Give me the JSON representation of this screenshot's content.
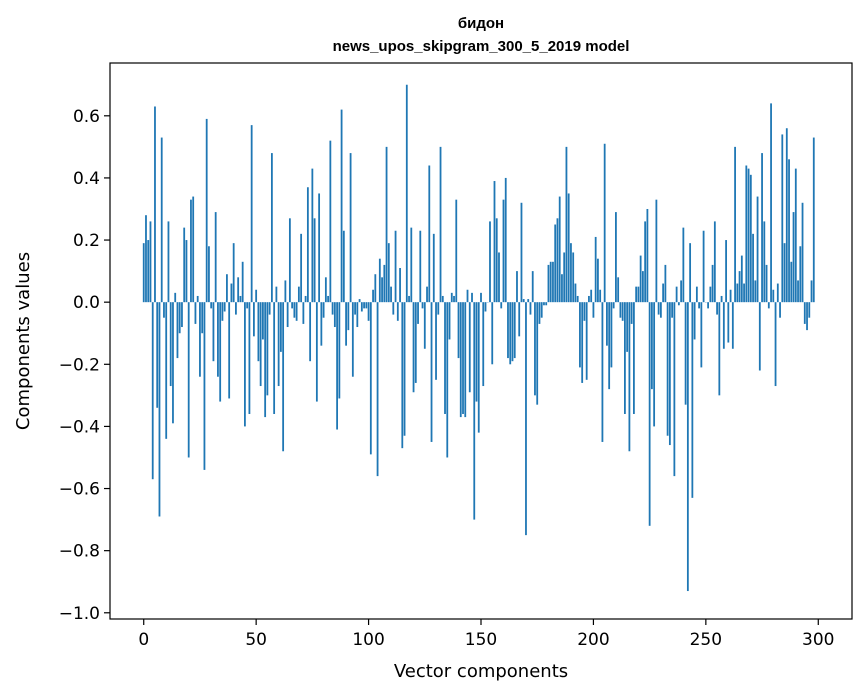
{
  "chart_data": {
    "type": "bar",
    "title_line1": "бидон",
    "title_line2": "news_upos_skipgram_300_5_2019 model",
    "xlabel": "Vector components",
    "ylabel": "Components values",
    "xlim": [
      -15,
      315
    ],
    "ylim": [
      -1.02,
      0.77
    ],
    "x_ticks": [
      0,
      50,
      100,
      150,
      200,
      250,
      300
    ],
    "x_tick_labels": [
      "0",
      "50",
      "100",
      "150",
      "200",
      "250",
      "300"
    ],
    "y_ticks": [
      -1.0,
      -0.8,
      -0.6,
      -0.4,
      -0.2,
      0.0,
      0.2,
      0.4,
      0.6
    ],
    "y_tick_labels": [
      "−1.0",
      "−0.8",
      "−0.6",
      "−0.4",
      "−0.2",
      "0.0",
      "0.2",
      "0.4",
      "0.6"
    ],
    "bar_color": "#1f77b4",
    "values": [
      0.19,
      0.28,
      0.2,
      0.26,
      -0.57,
      0.63,
      -0.34,
      -0.69,
      0.53,
      -0.05,
      -0.44,
      0.26,
      -0.27,
      -0.39,
      0.03,
      -0.18,
      -0.1,
      -0.08,
      0.24,
      0.2,
      -0.5,
      0.33,
      0.34,
      -0.07,
      0.02,
      -0.24,
      -0.1,
      -0.54,
      0.59,
      0.18,
      -0.02,
      -0.19,
      0.29,
      -0.24,
      -0.32,
      -0.06,
      -0.03,
      0.09,
      -0.31,
      0.06,
      0.19,
      -0.04,
      0.08,
      0.02,
      0.13,
      -0.4,
      -0.02,
      -0.36,
      0.57,
      -0.11,
      0.04,
      -0.19,
      -0.27,
      -0.12,
      -0.37,
      -0.3,
      -0.04,
      0.48,
      -0.36,
      0.05,
      -0.27,
      -0.16,
      -0.48,
      0.07,
      -0.08,
      0.27,
      -0.02,
      -0.05,
      -0.06,
      0.05,
      0.22,
      -0.07,
      0.02,
      0.37,
      -0.19,
      0.43,
      0.27,
      -0.32,
      0.35,
      -0.14,
      -0.05,
      0.08,
      0.02,
      0.52,
      -0.04,
      -0.08,
      -0.41,
      -0.31,
      0.62,
      0.23,
      -0.14,
      -0.09,
      0.48,
      -0.24,
      -0.04,
      -0.08,
      0.01,
      -0.03,
      -0.02,
      -0.02,
      -0.06,
      -0.49,
      0.04,
      0.09,
      -0.56,
      0.14,
      0.08,
      0.12,
      0.5,
      0.19,
      0.05,
      -0.04,
      0.23,
      -0.06,
      0.11,
      -0.47,
      -0.43,
      0.7,
      0.02,
      0.24,
      -0.29,
      -0.26,
      -0.07,
      0.23,
      -0.02,
      -0.15,
      0.05,
      0.44,
      -0.45,
      0.22,
      -0.25,
      -0.04,
      0.5,
      0.02,
      -0.36,
      -0.5,
      -0.12,
      0.03,
      0.02,
      0.33,
      -0.18,
      -0.37,
      -0.36,
      -0.37,
      0.04,
      -0.29,
      0.03,
      -0.7,
      -0.32,
      -0.42,
      0.03,
      -0.27,
      -0.03,
      0.0,
      0.26,
      -0.2,
      0.39,
      0.27,
      0.16,
      -0.02,
      0.33,
      0.4,
      -0.18,
      -0.2,
      -0.19,
      -0.18,
      0.1,
      -0.11,
      0.32,
      0.01,
      -0.75,
      0.01,
      -0.04,
      0.1,
      -0.3,
      -0.33,
      -0.07,
      -0.05,
      -0.01,
      -0.01,
      0.12,
      0.13,
      0.13,
      0.25,
      0.27,
      0.34,
      0.09,
      0.16,
      0.5,
      0.35,
      0.19,
      0.16,
      0.06,
      0.02,
      -0.21,
      -0.26,
      -0.06,
      -0.25,
      0.02,
      0.04,
      -0.05,
      0.21,
      0.14,
      0.04,
      -0.45,
      0.51,
      -0.14,
      -0.28,
      -0.21,
      -0.02,
      0.29,
      0.08,
      -0.05,
      -0.06,
      -0.36,
      -0.16,
      -0.48,
      -0.07,
      -0.36,
      0.05,
      0.05,
      0.15,
      0.1,
      0.26,
      0.3,
      -0.72,
      -0.28,
      -0.4,
      0.33,
      -0.04,
      -0.05,
      0.06,
      0.12,
      -0.43,
      -0.46,
      -0.05,
      -0.56,
      0.05,
      -0.01,
      0.07,
      0.24,
      -0.33,
      -0.93,
      0.19,
      -0.63,
      -0.12,
      0.05,
      -0.02,
      -0.21,
      0.23,
      0.0,
      -0.02,
      0.05,
      0.12,
      0.26,
      -0.04,
      -0.3,
      0.02,
      -0.15,
      0.2,
      -0.13,
      0.04,
      -0.15,
      0.5,
      0.06,
      0.1,
      0.15,
      0.06,
      0.44,
      0.43,
      0.41,
      0.22,
      0.07,
      0.34,
      -0.22,
      0.48,
      0.26,
      0.12,
      -0.02,
      0.64,
      0.04,
      -0.27,
      0.06,
      -0.05,
      0.54,
      0.19,
      0.56,
      0.46,
      0.13,
      0.29,
      0.43,
      0.07,
      0.18,
      0.32,
      -0.07,
      -0.09,
      -0.05,
      0.07,
      0.53
    ]
  }
}
